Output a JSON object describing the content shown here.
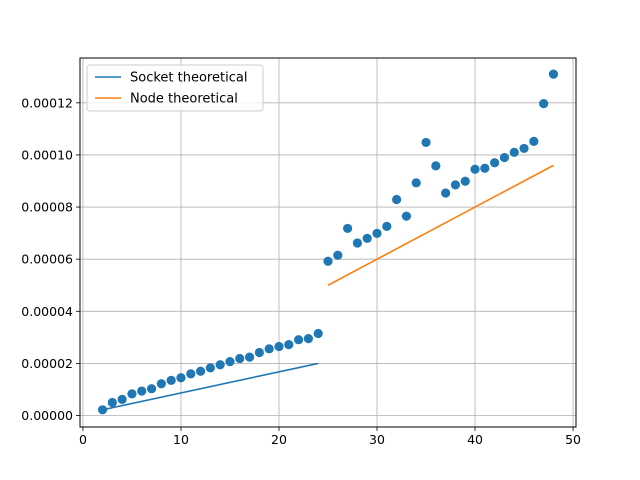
{
  "chart_data": {
    "type": "scatter",
    "title": "",
    "xlabel": "",
    "ylabel": "",
    "xlim": [
      -0.3,
      50.3
    ],
    "ylim": [
      -4.4e-06,
      0.0001372
    ],
    "grid": true,
    "legend_position": "top-left",
    "xticks": [
      0,
      10,
      20,
      30,
      40,
      50
    ],
    "xtick_labels": [
      "0",
      "10",
      "20",
      "30",
      "40",
      "50"
    ],
    "yticks": [
      0,
      2e-05,
      4e-05,
      6e-05,
      8e-05,
      0.0001,
      0.00012
    ],
    "ytick_labels": [
      "0.00000",
      "0.00002",
      "0.00004",
      "0.00006",
      "0.00008",
      "0.00010",
      "0.00012"
    ],
    "legend": [
      {
        "label": "Socket theoretical",
        "color": "#1f77b4"
      },
      {
        "label": "Node theoretical",
        "color": "#ff7f0e"
      }
    ],
    "lines": [
      {
        "name": "Socket theoretical",
        "color": "#1f77b4",
        "x": [
          2,
          24
        ],
        "y": [
          2.2e-06,
          2e-05
        ]
      },
      {
        "name": "Node theoretical",
        "color": "#ff7f0e",
        "x": [
          25,
          48
        ],
        "y": [
          5e-05,
          9.6e-05
        ]
      }
    ],
    "scatter": {
      "color": "#1f77b4",
      "x": [
        2,
        3,
        4,
        5,
        6,
        7,
        8,
        9,
        10,
        11,
        12,
        13,
        14,
        15,
        16,
        17,
        18,
        19,
        20,
        21,
        22,
        23,
        24,
        25,
        26,
        27,
        28,
        29,
        30,
        31,
        32,
        33,
        34,
        35,
        36,
        37,
        38,
        39,
        40,
        41,
        42,
        43,
        44,
        45,
        46,
        47,
        48
      ],
      "y": [
        2.2e-06,
        5e-06,
        6.2e-06,
        8.3e-06,
        9.4e-06,
        1.03e-05,
        1.22e-05,
        1.35e-05,
        1.45e-05,
        1.6e-05,
        1.7e-05,
        1.83e-05,
        1.95e-05,
        2.07e-05,
        2.19e-05,
        2.24e-05,
        2.42e-05,
        2.56e-05,
        2.65e-05,
        2.72e-05,
        2.91e-05,
        2.95e-05,
        3.15e-05,
        5.92e-05,
        6.15e-05,
        7.18e-05,
        6.62e-05,
        6.8e-05,
        6.99e-05,
        7.26e-05,
        8.29e-05,
        7.65e-05,
        8.93e-05,
        0.0001048,
        9.58e-05,
        8.54e-05,
        8.85e-05,
        8.99e-05,
        9.45e-05,
        9.49e-05,
        9.7e-05,
        9.9e-05,
        0.000101,
        0.0001025,
        0.0001052,
        0.0001197,
        0.000131
      ]
    }
  }
}
